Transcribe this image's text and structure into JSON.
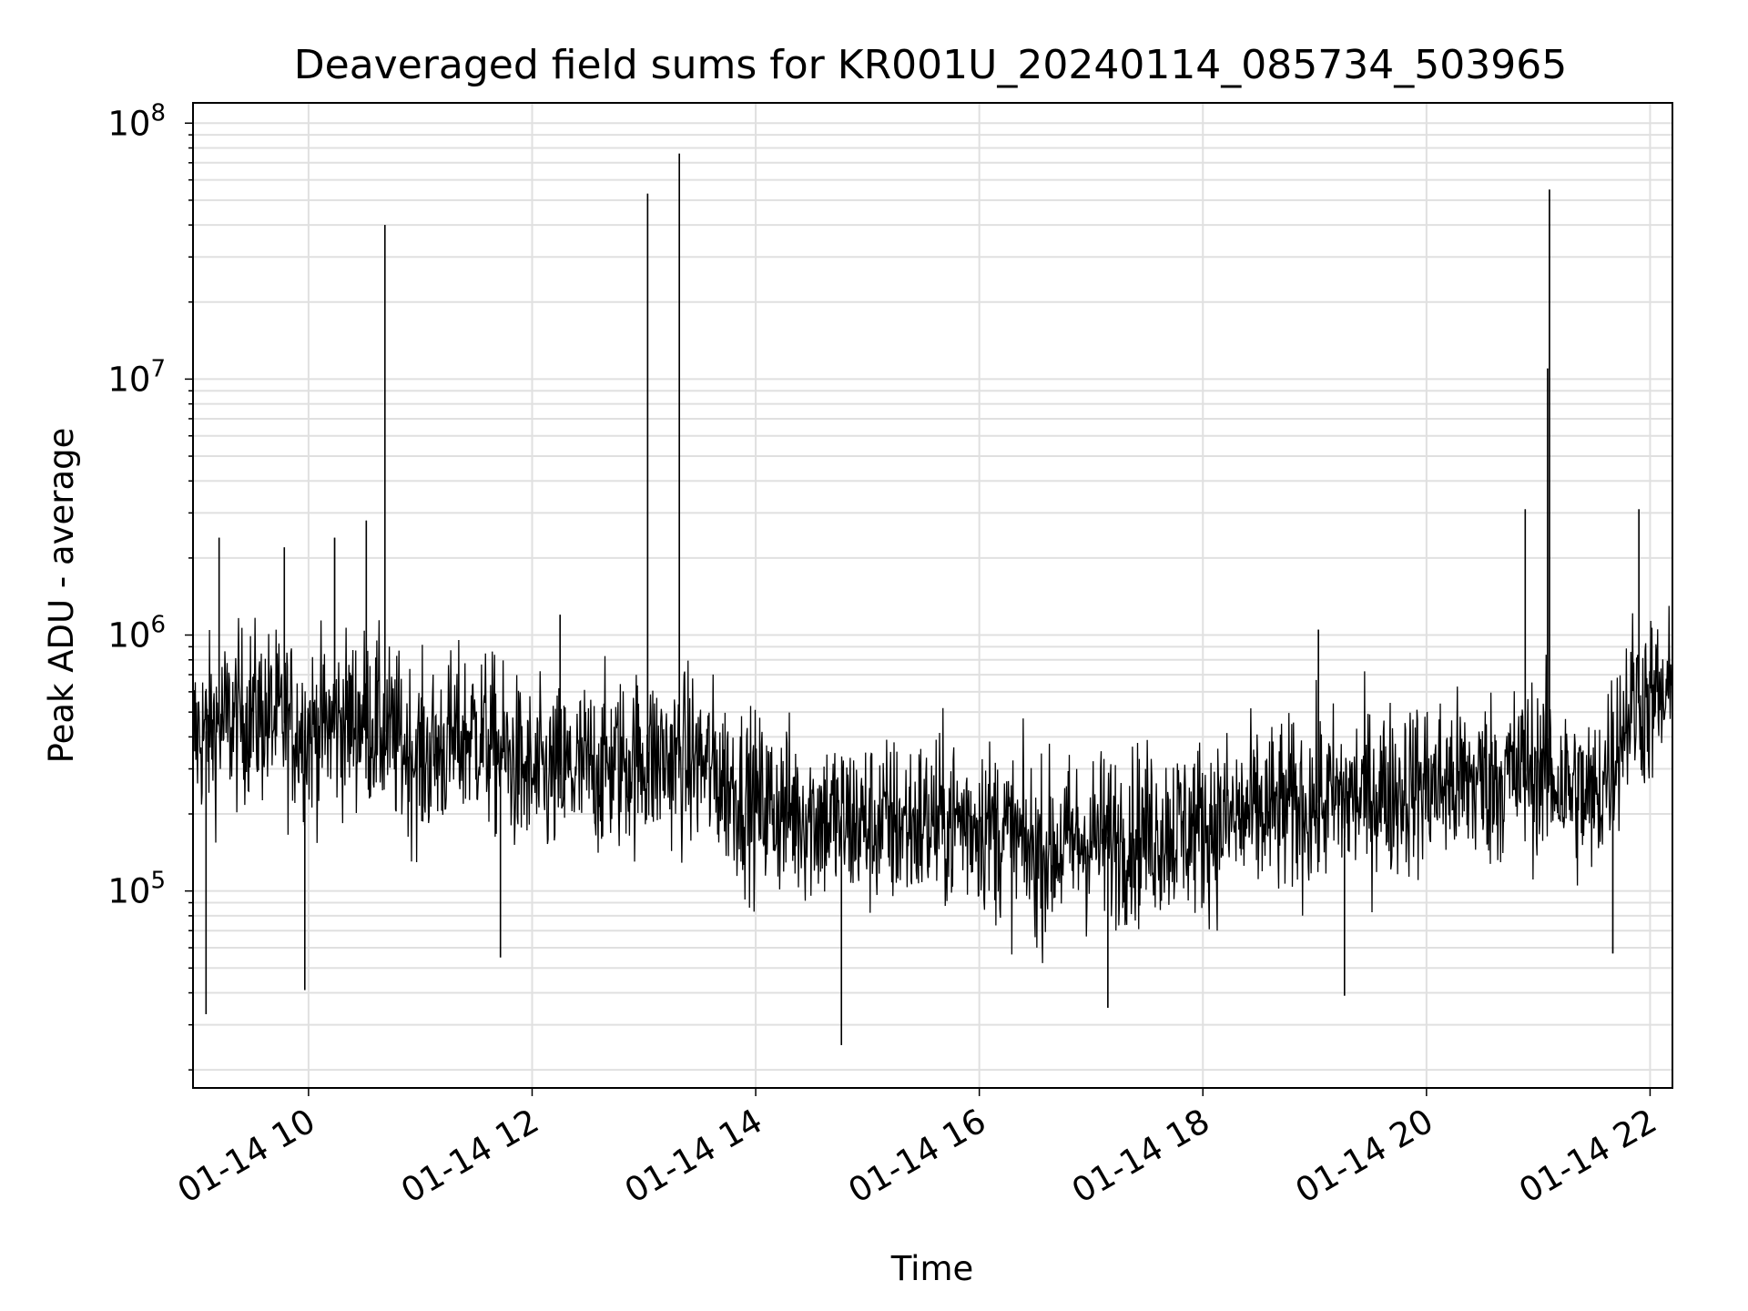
{
  "chart_data": {
    "type": "line",
    "title": "Deaveraged field sums for KR001U_20240114_085734_503965",
    "xlabel": "Time",
    "ylabel": "Peak ADU - average",
    "yscale": "log",
    "ylim": [
      17000,
      120000000
    ],
    "xlim": [
      "2024-01-14 08:58",
      "2024-01-14 22:12"
    ],
    "grid": true,
    "x_ticks": [
      {
        "value": "2024-01-14 10:00",
        "label": "01-14 10"
      },
      {
        "value": "2024-01-14 12:00",
        "label": "01-14 12"
      },
      {
        "value": "2024-01-14 14:00",
        "label": "01-14 14"
      },
      {
        "value": "2024-01-14 16:00",
        "label": "01-14 16"
      },
      {
        "value": "2024-01-14 18:00",
        "label": "01-14 18"
      },
      {
        "value": "2024-01-14 20:00",
        "label": "01-14 20"
      },
      {
        "value": "2024-01-14 22:00",
        "label": "01-14 22"
      }
    ],
    "y_ticks": [
      {
        "value": 100000,
        "base": "10",
        "exp": "5"
      },
      {
        "value": 1000000,
        "base": "10",
        "exp": "6"
      },
      {
        "value": 10000000,
        "base": "10",
        "exp": "7"
      },
      {
        "value": 100000000,
        "base": "10",
        "exp": "8"
      }
    ],
    "line_color": "#000000",
    "series": [
      {
        "name": "",
        "baseline": [
          [
            "2024-01-14 08:58",
            400000
          ],
          [
            "2024-01-14 09:30",
            500000
          ],
          [
            "2024-01-14 10:00",
            420000
          ],
          [
            "2024-01-14 10:30",
            480000
          ],
          [
            "2024-01-14 11:00",
            330000
          ],
          [
            "2024-01-14 11:30",
            420000
          ],
          [
            "2024-01-14 12:00",
            270000
          ],
          [
            "2024-01-14 12:30",
            300000
          ],
          [
            "2024-01-14 13:00",
            330000
          ],
          [
            "2024-01-14 13:30",
            320000
          ],
          [
            "2024-01-14 14:00",
            220000
          ],
          [
            "2024-01-14 15:00",
            180000
          ],
          [
            "2024-01-14 16:00",
            190000
          ],
          [
            "2024-01-14 16:30",
            140000
          ],
          [
            "2024-01-14 17:00",
            160000
          ],
          [
            "2024-01-14 18:00",
            180000
          ],
          [
            "2024-01-14 19:00",
            220000
          ],
          [
            "2024-01-14 20:00",
            260000
          ],
          [
            "2024-01-14 20:30",
            270000
          ],
          [
            "2024-01-14 21:00",
            300000
          ],
          [
            "2024-01-14 21:30",
            220000
          ],
          [
            "2024-01-14 21:50",
            550000
          ],
          [
            "2024-01-14 22:12",
            550000
          ]
        ],
        "spikes": [
          [
            "2024-01-14 09:12",
            2400000
          ],
          [
            "2024-01-14 09:47",
            2200000
          ],
          [
            "2024-01-14 10:14",
            2400000
          ],
          [
            "2024-01-14 10:31",
            2800000
          ],
          [
            "2024-01-14 10:41",
            40000000
          ],
          [
            "2024-01-14 12:15",
            1200000
          ],
          [
            "2024-01-14 13:02",
            53000000
          ],
          [
            "2024-01-14 13:19",
            76000000
          ],
          [
            "2024-01-14 19:02",
            1050000
          ],
          [
            "2024-01-14 20:53",
            3100000
          ],
          [
            "2024-01-14 21:05",
            11000000
          ],
          [
            "2024-01-14 21:06",
            55000000
          ],
          [
            "2024-01-14 21:54",
            3100000
          ]
        ],
        "dips": [
          [
            "2024-01-14 09:05",
            33000
          ],
          [
            "2024-01-14 09:58",
            41000
          ],
          [
            "2024-01-14 11:43",
            55000
          ],
          [
            "2024-01-14 14:46",
            25000
          ],
          [
            "2024-01-14 17:09",
            35000
          ],
          [
            "2024-01-14 19:16",
            39000
          ],
          [
            "2024-01-14 21:40",
            57000
          ]
        ]
      }
    ]
  }
}
